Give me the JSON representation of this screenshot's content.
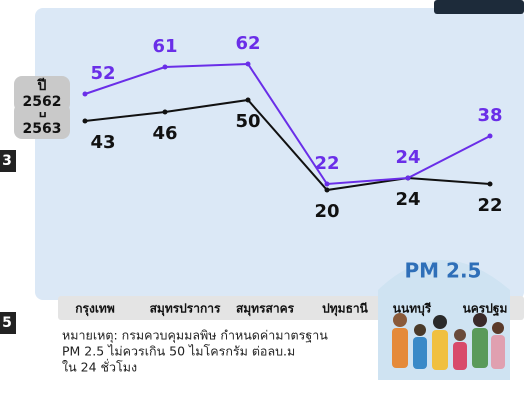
{
  "chart_data": {
    "type": "line",
    "categories": [
      "กรุงเทพ",
      "สมุทรปราการ",
      "สมุทรสาคร",
      "ปทุมธานี",
      "นนทบุรี",
      "นครปฐม"
    ],
    "series": [
      {
        "name": "ปี 2563",
        "color": "#111111",
        "values": [
          43,
          46,
          50,
          20,
          24,
          22
        ]
      },
      {
        "name": "ปี 2562",
        "color": "#6a2ee8",
        "values": [
          52,
          61,
          62,
          22,
          24,
          38
        ]
      }
    ],
    "ylim": [
      0,
      70
    ],
    "note": [
      "หมายเหตุ: กรมควบคุมมลพิษ กำหนดค่ามาตรฐาน",
      "PM 2.5  ไม่ควรเกิน 50 ไมโครกรัม ต่อลบ.ม",
      "ใน 24 ชั่วโมง"
    ],
    "badge": "PM 2.5",
    "fragments": [
      "3",
      "5"
    ]
  }
}
